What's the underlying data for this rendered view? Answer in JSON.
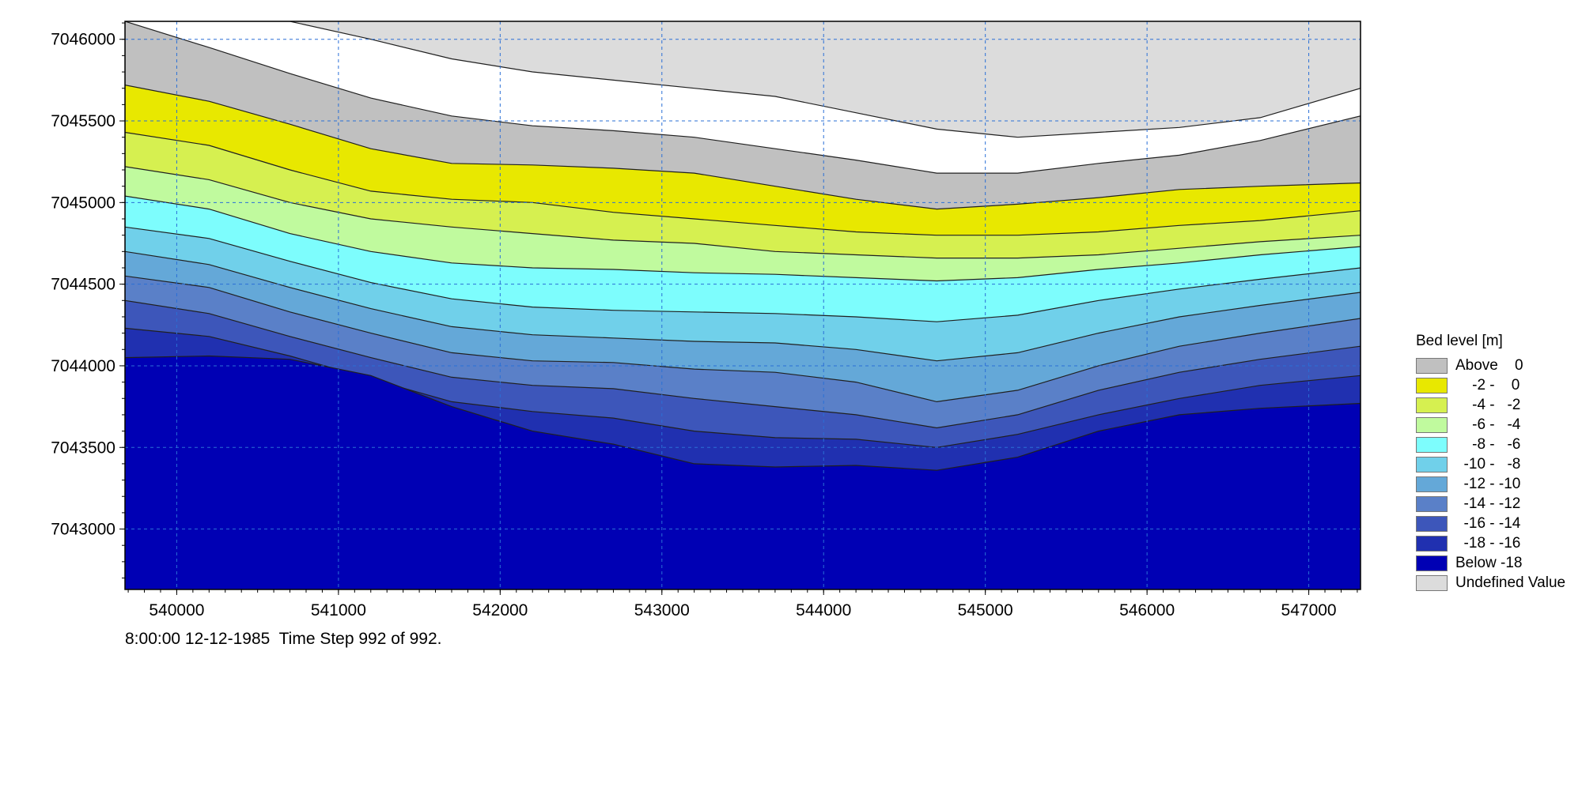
{
  "chart_data": {
    "type": "heatmap",
    "title": "",
    "xlabel": "",
    "ylabel": "",
    "xlim": [
      539680,
      547320
    ],
    "ylim": [
      7042630,
      7046110
    ],
    "grid": true,
    "x_ticks": [
      540000,
      541000,
      542000,
      543000,
      544000,
      545000,
      546000,
      547000
    ],
    "y_ticks": [
      7043000,
      7043500,
      7044000,
      7044500,
      7045000,
      7045500,
      7046000
    ],
    "legend": {
      "title": "Bed level [m]",
      "placement": "right",
      "entries": [
        {
          "label": "Above    0",
          "color": "#c0c0c0"
        },
        {
          "label": "    -2 -    0",
          "color": "#e8e800"
        },
        {
          "label": "    -4 -   -2",
          "color": "#d6f050"
        },
        {
          "label": "    -6 -   -4",
          "color": "#c0fa9e"
        },
        {
          "label": "    -8 -   -6",
          "color": "#7dfdfd"
        },
        {
          "label": "  -10 -   -8",
          "color": "#70d0ea"
        },
        {
          "label": "  -12 - -10",
          "color": "#64a8d8"
        },
        {
          "label": "  -14 - -12",
          "color": "#5a80c8"
        },
        {
          "label": "  -16 - -14",
          "color": "#3d56ba"
        },
        {
          "label": "  -18 - -16",
          "color": "#2030b0"
        },
        {
          "label": "Below -18",
          "color": "#0000b4"
        },
        {
          "label": "Undefined Value",
          "color": "#dcdcdc"
        }
      ]
    },
    "bands": [
      {
        "level": "Below -18",
        "color": "#0000b4",
        "boundary_y": [
          7044050,
          7044060,
          7044040,
          7043940,
          7043750,
          7043600,
          7043520,
          7043400,
          7043380,
          7043390,
          7043360,
          7043440,
          7043600,
          7043700,
          7043740,
          7043770
        ]
      },
      {
        "level": "-18 - -16",
        "color": "#2030b0",
        "boundary_y": [
          7044230,
          7044180,
          7044060,
          7043920,
          7043780,
          7043720,
          7043680,
          7043600,
          7043560,
          7043550,
          7043500,
          7043580,
          7043700,
          7043800,
          7043880,
          7043940
        ]
      },
      {
        "level": "-16 - -14",
        "color": "#3d56ba",
        "boundary_y": [
          7044400,
          7044320,
          7044180,
          7044050,
          7043930,
          7043880,
          7043860,
          7043800,
          7043750,
          7043700,
          7043620,
          7043700,
          7043850,
          7043960,
          7044040,
          7044120
        ]
      },
      {
        "level": "-14 - -12",
        "color": "#5a80c8",
        "boundary_y": [
          7044550,
          7044480,
          7044330,
          7044200,
          7044080,
          7044030,
          7044020,
          7043980,
          7043960,
          7043900,
          7043780,
          7043850,
          7044000,
          7044120,
          7044200,
          7044290
        ]
      },
      {
        "level": "-12 - -10",
        "color": "#64a8d8",
        "boundary_y": [
          7044700,
          7044620,
          7044480,
          7044350,
          7044240,
          7044190,
          7044170,
          7044150,
          7044140,
          7044100,
          7044030,
          7044080,
          7044200,
          7044300,
          7044370,
          7044450
        ]
      },
      {
        "level": "-10 - -8",
        "color": "#70d0ea",
        "boundary_y": [
          7044850,
          7044780,
          7044640,
          7044510,
          7044410,
          7044360,
          7044340,
          7044330,
          7044320,
          7044300,
          7044270,
          7044310,
          7044400,
          7044470,
          7044530,
          7044600
        ]
      },
      {
        "level": "-8 - -6",
        "color": "#7dfdfd",
        "boundary_y": [
          7045040,
          7044960,
          7044810,
          7044700,
          7044630,
          7044600,
          7044590,
          7044570,
          7044560,
          7044540,
          7044520,
          7044540,
          7044590,
          7044630,
          7044680,
          7044730
        ]
      },
      {
        "level": "-6 - -4",
        "color": "#c0fa9e",
        "boundary_y": [
          7045220,
          7045140,
          7045000,
          7044900,
          7044850,
          7044810,
          7044770,
          7044750,
          7044700,
          7044680,
          7044660,
          7044660,
          7044680,
          7044720,
          7044760,
          7044800
        ]
      },
      {
        "level": "-4 - -2",
        "color": "#d6f050",
        "boundary_y": [
          7045430,
          7045350,
          7045200,
          7045070,
          7045020,
          7045000,
          7044940,
          7044900,
          7044860,
          7044820,
          7044800,
          7044800,
          7044820,
          7044860,
          7044890,
          7044950
        ]
      },
      {
        "level": "-2 - 0",
        "color": "#e8e800",
        "boundary_y": [
          7045720,
          7045620,
          7045480,
          7045330,
          7045240,
          7045230,
          7045210,
          7045180,
          7045100,
          7045020,
          7044960,
          7044990,
          7045030,
          7045080,
          7045100,
          7045120
        ]
      },
      {
        "level": "Above 0",
        "color": "#c0c0c0",
        "boundary_y": [
          7046110,
          7045950,
          7045790,
          7045640,
          7045530,
          7045470,
          7045440,
          7045400,
          7045330,
          7045260,
          7045180,
          7045180,
          7045240,
          7045290,
          7045380,
          7045530
        ]
      }
    ],
    "band_x": [
      539680,
      540200,
      540700,
      541200,
      541700,
      542200,
      542700,
      543200,
      543700,
      544200,
      544700,
      545200,
      545700,
      546200,
      546700,
      547320
    ],
    "undefined_region_boundary_y": [
      7046110,
      7046110,
      7046110,
      7046000,
      7045880,
      7045800,
      7045750,
      7045700,
      7045650,
      7045550,
      7045450,
      7045400,
      7045430,
      7045460,
      7045520,
      7045700
    ]
  },
  "status": {
    "text": "8:00:00 12-12-1985  Time Step 992 of 992."
  }
}
